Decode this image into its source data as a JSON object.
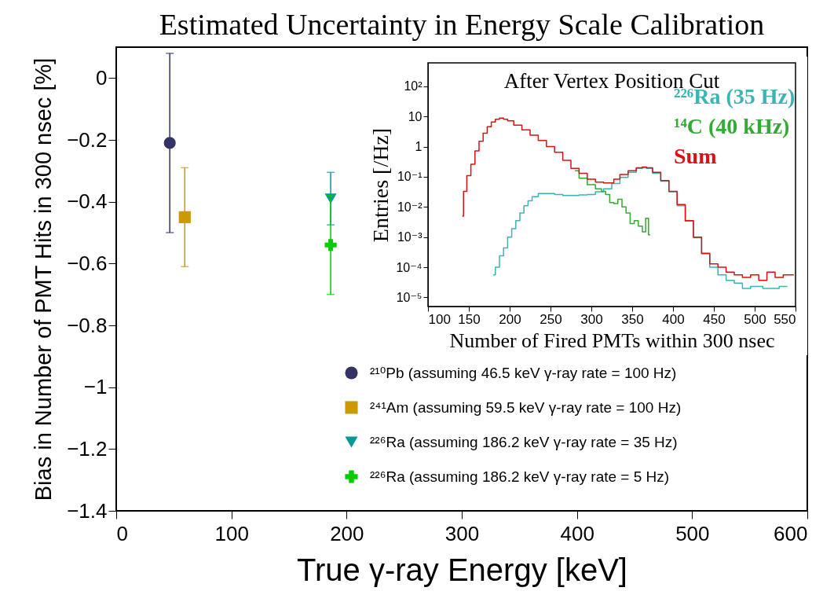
{
  "chart_data": [
    {
      "type": "scatter",
      "title": "Estimated Uncertainty in Energy Scale Calibration",
      "xlabel": "True γ-ray Energy [keV]",
      "ylabel": "Bias in Number of PMT Hits in 300 nsec [%]",
      "xlim": [
        0,
        600
      ],
      "ylim": [
        -1.4,
        0.1
      ],
      "xticks": [
        0,
        100,
        200,
        300,
        400,
        500,
        600
      ],
      "yticks": [
        0,
        -0.2,
        -0.4,
        -0.6,
        -0.8,
        -1,
        -1.2,
        -1.4
      ],
      "legend": "bottom right",
      "series": [
        {
          "name": "²¹⁰Pb (assuming 46.5 keV γ-ray rate = 100 Hz)",
          "color": "#333366",
          "marker": "circle",
          "x": [
            46.5
          ],
          "values": [
            -0.21
          ],
          "errors": [
            0.29
          ]
        },
        {
          "name": "²⁴¹Am (assuming 59.5 keV γ-ray rate = 100 Hz)",
          "color": "#cc9900",
          "marker": "square",
          "x": [
            59.5
          ],
          "values": [
            -0.45
          ],
          "errors": [
            0.16
          ]
        },
        {
          "name": "²²⁶Ra (assuming 186.2 keV γ-ray rate = 35 Hz)",
          "color": "#009999",
          "marker": "triangle",
          "x": [
            186.2
          ],
          "values": [
            -0.39
          ],
          "errors": [
            0.085
          ]
        },
        {
          "name": "²²⁶Ra (assuming 186.2 keV γ-ray rate = 5 Hz)",
          "color": "#00cc00",
          "marker": "cross",
          "x": [
            186.2
          ],
          "values": [
            -0.54
          ],
          "errors": [
            0.16
          ]
        }
      ]
    },
    {
      "type": "step",
      "title": "After Vertex Position Cut",
      "xlabel": "Number of Fired PMTs within 300 nsec",
      "ylabel": "Entries [/Hz]",
      "log": "y",
      "legend": "top right",
      "xlim": [
        100,
        550
      ],
      "ylim": [
        5e-06,
        600
      ],
      "xticks": [
        100,
        150,
        200,
        250,
        300,
        350,
        400,
        450,
        500,
        550
      ],
      "yticks": [
        {
          "value": 1e-05,
          "label": "10⁻⁵"
        },
        {
          "value": 0.0001,
          "label": "10⁻⁴"
        },
        {
          "value": 0.001,
          "label": "10⁻³"
        },
        {
          "value": 0.01,
          "label": "10⁻²"
        },
        {
          "value": 0.1,
          "label": "10⁻¹"
        },
        1,
        10,
        {
          "value": 100,
          "label": "10²"
        }
      ],
      "series": [
        {
          "name": "²²⁶Ra (35 Hz)",
          "color": "#3cb4b4",
          "x": [
            180,
            185,
            190,
            195,
            200,
            205,
            210,
            215,
            220,
            225,
            230,
            240,
            250,
            260,
            270,
            280,
            290,
            300,
            310,
            320,
            330,
            340,
            350,
            360,
            365,
            370,
            380,
            390,
            400,
            410,
            420,
            430,
            440,
            450,
            460,
            470,
            480,
            490,
            500,
            520,
            540
          ],
          "values": [
            5.6e-05,
            0.0001,
            0.00024,
            0.00044,
            0.001,
            0.0019,
            0.0035,
            0.0063,
            0.011,
            0.016,
            0.022,
            0.028,
            0.028,
            0.026,
            0.024,
            0.024,
            0.025,
            0.026,
            0.032,
            0.04,
            0.06,
            0.095,
            0.14,
            0.19,
            0.2,
            0.19,
            0.13,
            0.072,
            0.032,
            0.011,
            0.0034,
            0.00095,
            0.00028,
            0.0001,
            5.6e-05,
            3.7e-05,
            3e-05,
            2e-05,
            2.3e-05,
            2e-05,
            2.3e-05
          ]
        },
        {
          "name": "¹⁴C (40 kHz)",
          "color": "#33aa33",
          "x": [
            280,
            290,
            300,
            310,
            315,
            320,
            325,
            330,
            335,
            340,
            345,
            350,
            355,
            360,
            365,
            368,
            372
          ],
          "values": [
            0.16,
            0.09,
            0.055,
            0.04,
            0.033,
            0.026,
            0.014,
            0.013,
            0.018,
            0.01,
            0.0063,
            0.0028,
            0.0035,
            0.0023,
            0.0015,
            0.0042,
            0.0012
          ]
        },
        {
          "name": "Sum",
          "color": "#dd1111",
          "x": [
            142,
            145,
            150,
            155,
            160,
            165,
            170,
            175,
            180,
            185,
            190,
            195,
            200,
            210,
            220,
            230,
            240,
            250,
            260,
            270,
            280,
            290,
            300,
            310,
            320,
            325,
            330,
            340,
            350,
            360,
            365,
            370,
            380,
            390,
            400,
            410,
            420,
            430,
            440,
            450,
            460,
            470,
            480,
            490,
            500,
            510,
            520,
            530,
            540,
            548
          ],
          "values": [
            0.005,
            0.033,
            0.11,
            0.26,
            0.72,
            1.5,
            2.8,
            4.6,
            6.6,
            8.1,
            8.9,
            8.1,
            7.2,
            5.2,
            3.6,
            2.4,
            1.6,
            1,
            0.65,
            0.35,
            0.19,
            0.13,
            0.083,
            0.067,
            0.063,
            0.063,
            0.083,
            0.12,
            0.16,
            0.2,
            0.21,
            0.2,
            0.14,
            0.075,
            0.033,
            0.012,
            0.0035,
            0.001,
            0.00029,
            0.00013,
            0.0001,
            6.9e-05,
            5.6e-05,
            4.6e-05,
            5.6e-05,
            3.7e-05,
            6.9e-05,
            4.6e-05,
            5.6e-05,
            5.6e-05
          ]
        }
      ]
    }
  ]
}
